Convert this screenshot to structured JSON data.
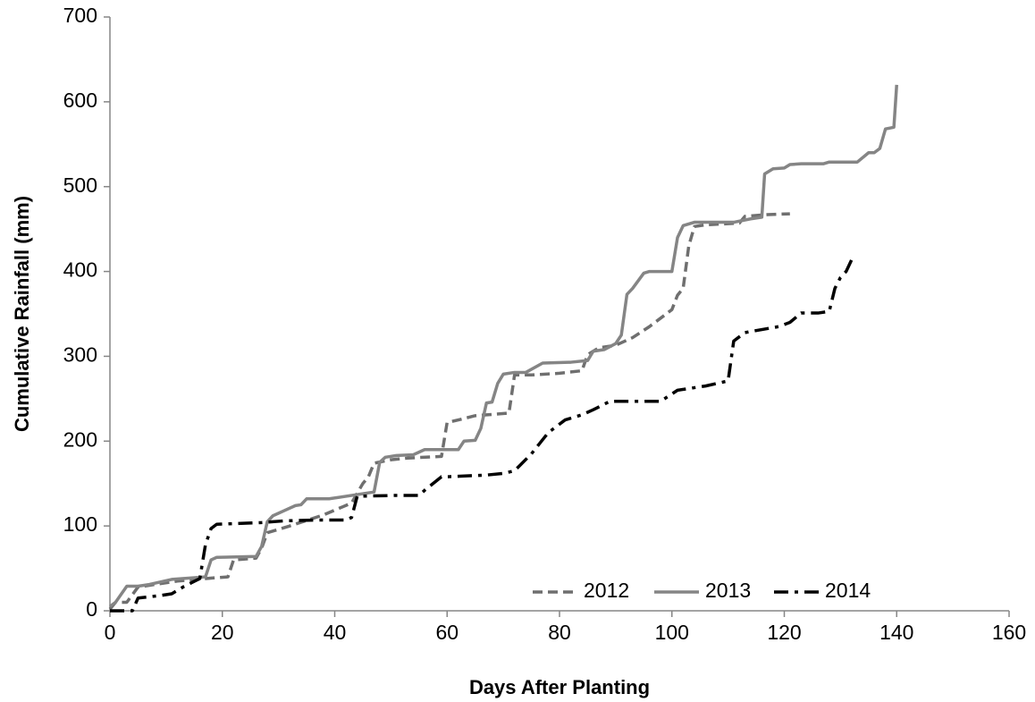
{
  "chart_data": {
    "type": "line",
    "x_label": "Days After Planting",
    "y_label": "Cumulative Rainfall (mm)",
    "xlim": [
      0,
      160
    ],
    "xticks": [
      0,
      20,
      40,
      60,
      80,
      100,
      120,
      140,
      160
    ],
    "ylim": [
      0,
      700
    ],
    "yticks": [
      0,
      100,
      200,
      300,
      400,
      500,
      600,
      700
    ],
    "grid": false,
    "legend": "lower right",
    "series": [
      {
        "name": "2012",
        "color": "#6f6f6f",
        "dash": "dashed",
        "x": [
          0,
          1,
          3,
          5,
          12,
          17,
          21,
          22,
          26,
          27,
          28,
          32,
          38,
          43,
          45,
          46,
          47,
          50,
          53,
          59,
          60,
          62,
          65,
          71,
          72,
          75,
          80,
          84,
          85,
          87,
          90,
          93,
          96,
          100,
          101,
          102,
          103,
          104,
          106,
          112,
          113,
          117,
          121
        ],
        "values": [
          2,
          10,
          10,
          28,
          35,
          38,
          40,
          60,
          62,
          74,
          92,
          100,
          113,
          127,
          150,
          158,
          174,
          178,
          180,
          182,
          222,
          225,
          230,
          233,
          278,
          278,
          280,
          283,
          302,
          310,
          313,
          322,
          335,
          355,
          372,
          380,
          430,
          453,
          455,
          457,
          465,
          467,
          468
        ]
      },
      {
        "name": "2013",
        "color": "#858585",
        "dash": "solid",
        "x": [
          0,
          1,
          3,
          5,
          7,
          11,
          17,
          18,
          19,
          26,
          27,
          28,
          29,
          31,
          33,
          34,
          35,
          39,
          47,
          48,
          49,
          51,
          54,
          56,
          62,
          63,
          65,
          66,
          67,
          68,
          69,
          70,
          72,
          74,
          77,
          82,
          85,
          86,
          88,
          90,
          91,
          92,
          93,
          95,
          96,
          100,
          101,
          102,
          104,
          111,
          114,
          116,
          116.5,
          118,
          120,
          121,
          123,
          127,
          128,
          133,
          135,
          136,
          137,
          138,
          139.5,
          140
        ],
        "values": [
          5,
          10,
          29,
          29,
          31,
          37,
          40,
          60,
          63,
          64,
          76,
          105,
          112,
          118,
          124,
          125,
          132,
          132,
          140,
          175,
          181,
          183,
          184,
          190,
          190,
          200,
          201,
          215,
          245,
          246,
          268,
          279,
          281,
          281,
          292,
          293,
          295,
          306,
          308,
          315,
          325,
          373,
          380,
          398,
          400,
          400,
          440,
          454,
          458,
          458,
          462,
          464,
          515,
          521,
          522,
          526,
          527,
          527,
          529,
          529,
          540,
          540,
          545,
          568,
          570,
          620
        ]
      },
      {
        "name": "2014",
        "color": "#000000",
        "dash": "dashdot",
        "x": [
          0,
          4,
          5,
          9,
          11,
          13,
          16,
          17,
          18,
          19,
          27,
          31,
          37,
          42,
          43,
          44,
          51,
          55,
          56,
          59,
          60,
          67,
          70,
          72,
          75,
          78,
          81,
          84,
          86,
          89,
          98,
          101,
          106,
          110,
          111,
          113,
          119,
          121,
          123,
          126,
          128,
          129,
          130,
          131,
          132
        ],
        "values": [
          0,
          0,
          15,
          18,
          20,
          28,
          38,
          78,
          97,
          102,
          104,
          106,
          107,
          107,
          110,
          135,
          136,
          136,
          142,
          158,
          158,
          160,
          162,
          165,
          185,
          210,
          225,
          231,
          237,
          247,
          247,
          260,
          265,
          271,
          318,
          328,
          335,
          340,
          351,
          351,
          353,
          380,
          393,
          400,
          414
        ]
      }
    ]
  }
}
